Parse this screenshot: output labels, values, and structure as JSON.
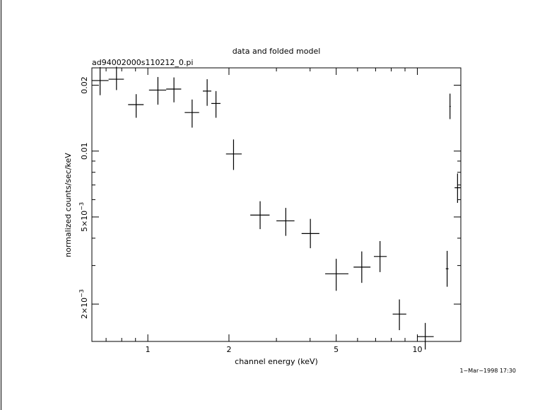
{
  "chart_data": {
    "type": "scatter",
    "title": "data and folded model",
    "subtitle": "ad94002000s110212_0.pi",
    "xlabel": "channel energy (keV)",
    "ylabel": "normalized counts/sec/keV",
    "timestamp": "1−Mar−1998 17:30",
    "x_scale": "log",
    "y_scale": "log",
    "xlim": [
      0.62,
      14.5
    ],
    "ylim": [
      0.00135,
      0.024
    ],
    "x_ticks": [
      {
        "value": 1,
        "label": "1"
      },
      {
        "value": 2,
        "label": "2"
      },
      {
        "value": 5,
        "label": "5"
      },
      {
        "value": 10,
        "label": "10"
      }
    ],
    "y_ticks": [
      {
        "value": 0.02,
        "label": "0.02",
        "sup": ""
      },
      {
        "value": 0.01,
        "label": "0.01",
        "sup": ""
      },
      {
        "value": 0.005,
        "label": "5×10",
        "sup": "−3"
      },
      {
        "value": 0.002,
        "label": "2×10",
        "sup": "−3"
      }
    ],
    "points": [
      {
        "x": 0.665,
        "xlo": 0.618,
        "xhi": 0.715,
        "y": 0.021,
        "ylo": 0.018,
        "yhi": 0.0242
      },
      {
        "x": 0.765,
        "xlo": 0.715,
        "xhi": 0.815,
        "y": 0.0213,
        "ylo": 0.019,
        "yhi": 0.0243
      },
      {
        "x": 0.905,
        "xlo": 0.845,
        "xhi": 0.965,
        "y": 0.0163,
        "ylo": 0.0142,
        "yhi": 0.0182
      },
      {
        "x": 1.09,
        "xlo": 1.01,
        "xhi": 1.17,
        "y": 0.019,
        "ylo": 0.0163,
        "yhi": 0.0218
      },
      {
        "x": 1.25,
        "xlo": 1.17,
        "xhi": 1.33,
        "y": 0.0192,
        "ylo": 0.0167,
        "yhi": 0.0217
      },
      {
        "x": 1.46,
        "xlo": 1.37,
        "xhi": 1.55,
        "y": 0.015,
        "ylo": 0.0128,
        "yhi": 0.0172
      },
      {
        "x": 1.66,
        "xlo": 1.6,
        "xhi": 1.72,
        "y": 0.0188,
        "ylo": 0.0161,
        "yhi": 0.0213
      },
      {
        "x": 1.79,
        "xlo": 1.72,
        "xhi": 1.86,
        "y": 0.0165,
        "ylo": 0.0142,
        "yhi": 0.0188
      },
      {
        "x": 2.08,
        "xlo": 1.95,
        "xhi": 2.23,
        "y": 0.0097,
        "ylo": 0.0082,
        "yhi": 0.0113
      },
      {
        "x": 2.61,
        "xlo": 2.4,
        "xhi": 2.83,
        "y": 0.0051,
        "ylo": 0.0044,
        "yhi": 0.0059
      },
      {
        "x": 3.25,
        "xlo": 3.0,
        "xhi": 3.5,
        "y": 0.0048,
        "ylo": 0.0041,
        "yhi": 0.0055
      },
      {
        "x": 4.01,
        "xlo": 3.72,
        "xhi": 4.33,
        "y": 0.0042,
        "ylo": 0.0036,
        "yhi": 0.0049
      },
      {
        "x": 5.0,
        "xlo": 4.55,
        "xhi": 5.55,
        "y": 0.00275,
        "ylo": 0.0023,
        "yhi": 0.00322
      },
      {
        "x": 6.22,
        "xlo": 5.8,
        "xhi": 6.7,
        "y": 0.00295,
        "ylo": 0.0025,
        "yhi": 0.00348
      },
      {
        "x": 7.27,
        "xlo": 6.9,
        "xhi": 7.7,
        "y": 0.0033,
        "ylo": 0.0028,
        "yhi": 0.00388
      },
      {
        "x": 8.58,
        "xlo": 8.1,
        "xhi": 9.1,
        "y": 0.0018,
        "ylo": 0.00152,
        "yhi": 0.0021
      },
      {
        "x": 10.7,
        "xlo": 10.0,
        "xhi": 11.5,
        "y": 0.00142,
        "ylo": 0.00124,
        "yhi": 0.00164
      },
      {
        "x": 12.9,
        "xlo": 12.75,
        "xhi": 13.05,
        "y": 0.0029,
        "ylo": 0.0024,
        "yhi": 0.0035
      },
      {
        "x": 13.22,
        "xlo": 13.15,
        "xhi": 13.3,
        "y": 0.016,
        "ylo": 0.014,
        "yhi": 0.0183
      },
      {
        "x": 14.1,
        "xlo": 13.75,
        "xhi": 14.45,
        "y": 0.0068,
        "ylo": 0.0058,
        "yhi": 0.0079
      }
    ]
  }
}
